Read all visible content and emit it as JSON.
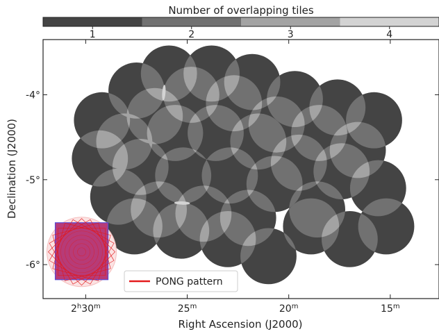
{
  "chart_data": {
    "type": "heatmap",
    "title": "",
    "xlabel": "Right Ascension (J2000)",
    "ylabel": "Declination (J2000)",
    "colorbar": {
      "label": "Number of overlapping tiles",
      "levels": [
        {
          "value": 1,
          "label": "1",
          "color": "#444444"
        },
        {
          "value": 2,
          "label": "2",
          "color": "#717171"
        },
        {
          "value": 3,
          "label": "3",
          "color": "#a3a3a3"
        },
        {
          "value": 4,
          "label": "4",
          "color": "#d3d3d3"
        }
      ]
    },
    "x_ticks": [
      {
        "label_main": "2",
        "sup1": "h",
        "label_mid": "30",
        "sup2": "m",
        "ra_min": 150
      },
      {
        "label_main": "25",
        "sup1": "m",
        "label_mid": "",
        "sup2": "",
        "ra_min": 145
      },
      {
        "label_main": "20",
        "sup1": "m",
        "label_mid": "",
        "sup2": "",
        "ra_min": 140
      },
      {
        "label_main": "15",
        "sup1": "m",
        "label_mid": "",
        "sup2": "",
        "ra_min": 135
      }
    ],
    "y_ticks": [
      {
        "label": "-4°",
        "dec": -4
      },
      {
        "label": "-5°",
        "dec": -5
      },
      {
        "label": "-6°",
        "dec": -6
      }
    ],
    "xlim_ra_min": [
      152.1,
      132.6
    ],
    "ylim_dec": [
      -6.4,
      -3.35
    ],
    "tile_radius_deg": 0.33,
    "tiles": [
      {
        "ra": 145.9,
        "dec": -3.75
      },
      {
        "ra": 143.8,
        "dec": -3.75
      },
      {
        "ra": 141.8,
        "dec": -3.85
      },
      {
        "ra": 147.5,
        "dec": -3.95
      },
      {
        "ra": 139.7,
        "dec": -4.05
      },
      {
        "ra": 137.6,
        "dec": -4.15
      },
      {
        "ra": 149.2,
        "dec": -4.3
      },
      {
        "ra": 135.8,
        "dec": -4.3
      },
      {
        "ra": 144.8,
        "dec": -4.0
      },
      {
        "ra": 142.7,
        "dec": -4.1
      },
      {
        "ra": 146.6,
        "dec": -4.25
      },
      {
        "ra": 148.1,
        "dec": -4.55
      },
      {
        "ra": 140.6,
        "dec": -4.35
      },
      {
        "ra": 138.5,
        "dec": -4.45
      },
      {
        "ra": 136.6,
        "dec": -4.65
      },
      {
        "ra": 145.6,
        "dec": -4.45
      },
      {
        "ra": 143.6,
        "dec": -4.45
      },
      {
        "ra": 141.5,
        "dec": -4.55
      },
      {
        "ra": 149.3,
        "dec": -4.75
      },
      {
        "ra": 147.3,
        "dec": -4.85
      },
      {
        "ra": 139.5,
        "dec": -4.8
      },
      {
        "ra": 137.4,
        "dec": -4.9
      },
      {
        "ra": 135.6,
        "dec": -5.1
      },
      {
        "ra": 145.2,
        "dec": -4.95
      },
      {
        "ra": 142.9,
        "dec": -4.95
      },
      {
        "ra": 140.7,
        "dec": -5.05
      },
      {
        "ra": 148.4,
        "dec": -5.2
      },
      {
        "ra": 146.4,
        "dec": -5.35
      },
      {
        "ra": 144.2,
        "dec": -5.4
      },
      {
        "ra": 142.0,
        "dec": -5.45
      },
      {
        "ra": 138.6,
        "dec": -5.35
      },
      {
        "ra": 147.6,
        "dec": -5.55
      },
      {
        "ra": 145.3,
        "dec": -5.6
      },
      {
        "ra": 143.0,
        "dec": -5.7
      },
      {
        "ra": 141.0,
        "dec": -5.9
      },
      {
        "ra": 138.9,
        "dec": -5.55
      },
      {
        "ra": 137.0,
        "dec": -5.7
      },
      {
        "ra": 135.2,
        "dec": -5.55
      }
    ],
    "legend": {
      "label": "PONG pattern",
      "color": "#e31a1c",
      "placement": "lower-left"
    },
    "inset": {
      "type": "PONG scan pattern",
      "center_ra": 150.2,
      "center_dec": -5.85
    }
  }
}
